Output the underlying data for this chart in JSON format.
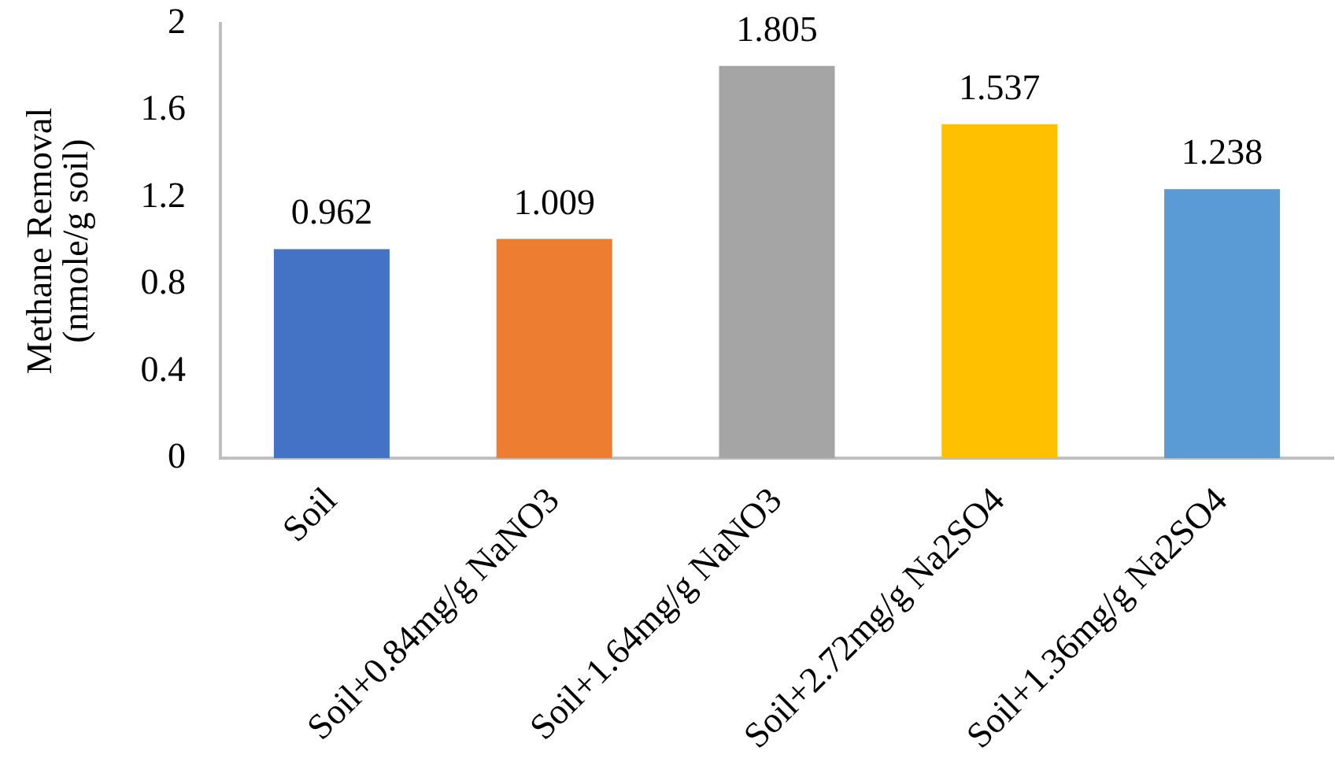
{
  "chart_data": {
    "type": "bar",
    "ylabel": "Methane Removal\n(nmole/g soil)",
    "categories": [
      "Soil",
      "Soil+0.84mg/g NaNO3",
      "Soil+1.64mg/g NaNO3",
      "Soil+2.72mg/g Na2SO4",
      "Soil+1.36mg/g Na2SO4"
    ],
    "values": [
      0.962,
      1.009,
      1.805,
      1.537,
      1.238
    ],
    "colors": [
      "#4472c4",
      "#ed7d31",
      "#a5a5a5",
      "#ffc000",
      "#5b9bd5"
    ],
    "ylim": [
      0,
      2
    ],
    "yticks": [
      0,
      0.4,
      0.8,
      1.2,
      1.6,
      2
    ],
    "data_labels": true,
    "grid": false,
    "legend": false
  }
}
